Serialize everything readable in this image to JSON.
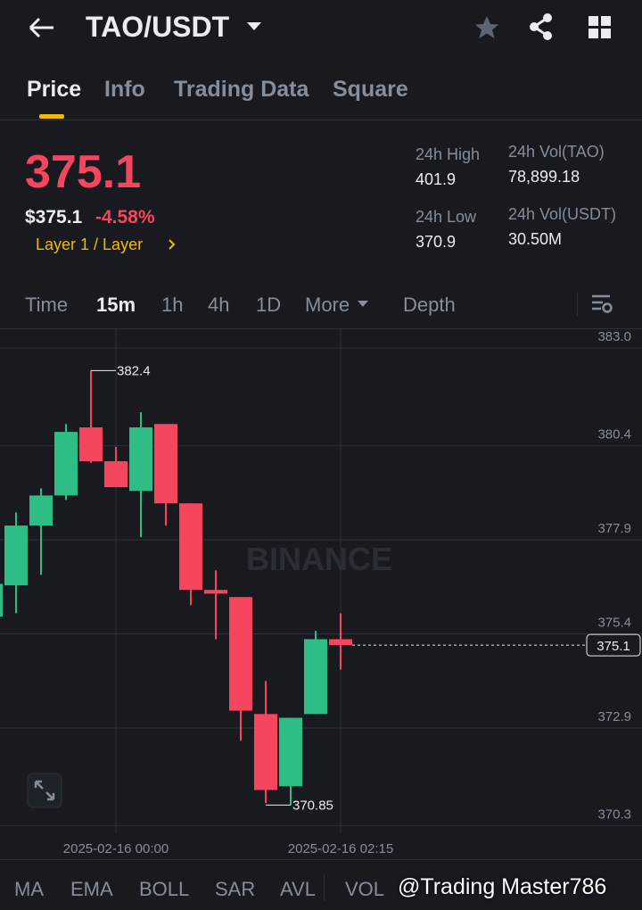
{
  "header": {
    "title": "TAO/USDT"
  },
  "tabs": [
    "Price",
    "Info",
    "Trading Data",
    "Square"
  ],
  "price": {
    "last": "375.1",
    "usd": "$375.1",
    "change": "-4.58%",
    "tag": "Layer 1 / Layer",
    "stats": [
      {
        "label": "24h High",
        "value": "401.9"
      },
      {
        "label": "24h Low",
        "value": "370.9"
      },
      {
        "label": "24h Vol(TAO)",
        "value": "78,899.18"
      },
      {
        "label": "24h Vol(USDT)",
        "value": "30.50M"
      }
    ]
  },
  "timeframes": [
    "Time",
    "15m",
    "1h",
    "4h",
    "1D",
    "More",
    "Depth"
  ],
  "chart_data": {
    "type": "candlestick",
    "watermark": "BINANCE",
    "categories": [
      null,
      null,
      null,
      null,
      null,
      "2025-02-16 00:00",
      null,
      null,
      null,
      null,
      null,
      null,
      null,
      null,
      "2025-02-16 02:15"
    ],
    "open": [
      375.86,
      376.69,
      378.28,
      379.08,
      380.89,
      379.99,
      379.2,
      380.98,
      378.87,
      376.57,
      376.38,
      373.27,
      371.35,
      373.27,
      375.26
    ],
    "high": [
      376.9,
      378.63,
      379.27,
      380.98,
      382.4,
      380.37,
      381.29,
      380.98,
      378.87,
      377.09,
      376.38,
      374.15,
      373.17,
      375.48,
      375.95
    ],
    "low": [
      375.6,
      375.95,
      376.97,
      378.96,
      379.95,
      379.3,
      377.97,
      378.28,
      376.16,
      375.26,
      372.56,
      370.9,
      370.85,
      373.27,
      374.45
    ],
    "close": [
      376.73,
      378.28,
      379.08,
      380.77,
      379.99,
      379.3,
      380.89,
      378.87,
      376.57,
      376.47,
      373.36,
      371.25,
      373.17,
      375.26,
      375.1
    ],
    "up_color": "#2ebd85",
    "down_color": "#f6465d",
    "ylim": [
      370.1,
      383.5
    ],
    "yticks": [
      {
        "value": 383,
        "label": "383.0"
      },
      380.4,
      377.9,
      375.4,
      372.9,
      370.3
    ],
    "grid": true
  },
  "indicators": [
    "MA",
    "EMA",
    "BOLL",
    "SAR",
    "AVL",
    "VOL"
  ],
  "watermark": "@Trading Master786"
}
